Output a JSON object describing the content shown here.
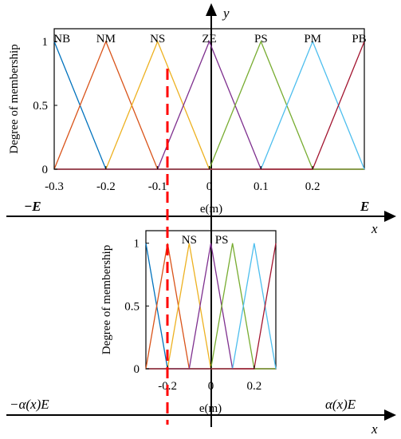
{
  "axis_labels": {
    "y_vertical": "y",
    "x_horizontal_1": "x",
    "x_horizontal_2": "x",
    "left_1": "−E",
    "right_1": "E",
    "left_2": "−α(x)E",
    "right_2": "α(x)E"
  },
  "colors": {
    "NB": "#0072BD",
    "NM": "#D95319",
    "NS": "#EDB120",
    "ZE": "#7E2F8E",
    "PS": "#77AC30",
    "PM": "#4DBEEE",
    "PB": "#A2142F",
    "dashed": "#FF0000"
  },
  "chart_data": [
    {
      "type": "line",
      "ylabel": "Degree of membership",
      "xlabel": "e(m)",
      "xlim": [
        -0.3,
        0.3
      ],
      "ylim": [
        0,
        1.1
      ],
      "xticks": [
        -0.3,
        -0.2,
        -0.1,
        0,
        0.1,
        0.2
      ],
      "xtick_labels": [
        "-0.3",
        "-0.2",
        "-0.1",
        "0",
        "0.1",
        "0.2"
      ],
      "yticks": [
        0,
        0.5,
        1
      ],
      "ytick_labels": [
        "0",
        "0.5",
        "1"
      ],
      "set_labels": [
        "NB",
        "NM",
        "NS",
        "ZE",
        "PS",
        "PM",
        "PB"
      ],
      "series": [
        {
          "name": "NB",
          "x": [
            -0.3,
            -0.2,
            0.3
          ],
          "y": [
            1,
            0,
            0
          ]
        },
        {
          "name": "NM",
          "x": [
            -0.3,
            -0.2,
            -0.1,
            0.3
          ],
          "y": [
            0,
            1,
            0,
            0
          ]
        },
        {
          "name": "NS",
          "x": [
            -0.3,
            -0.2,
            -0.1,
            0,
            0.3
          ],
          "y": [
            0,
            0,
            1,
            0,
            0
          ]
        },
        {
          "name": "ZE",
          "x": [
            -0.3,
            -0.1,
            0,
            0.1,
            0.3
          ],
          "y": [
            0,
            0,
            1,
            0,
            0
          ]
        },
        {
          "name": "PS",
          "x": [
            -0.3,
            0,
            0.1,
            0.2,
            0.3
          ],
          "y": [
            0,
            0,
            1,
            0,
            0
          ]
        },
        {
          "name": "PM",
          "x": [
            -0.3,
            0.1,
            0.2,
            0.3
          ],
          "y": [
            0,
            0,
            1,
            0
          ]
        },
        {
          "name": "PB",
          "x": [
            -0.3,
            0.2,
            0.3
          ],
          "y": [
            0,
            0,
            1
          ]
        }
      ]
    },
    {
      "type": "line",
      "ylabel": "Degree of membership",
      "xlabel": "e(m)",
      "xlim": [
        -0.3,
        0.3
      ],
      "ylim": [
        0,
        1.1
      ],
      "xticks": [
        -0.2,
        0,
        0.2
      ],
      "xtick_labels": [
        "-0.2",
        "0",
        "0.2"
      ],
      "yticks": [
        0,
        0.5,
        1
      ],
      "ytick_labels": [
        "0",
        "0.5",
        "1"
      ],
      "set_labels": [
        "NS",
        "PS"
      ],
      "series": [
        {
          "name": "NB",
          "x": [
            -0.3,
            -0.2,
            0.3
          ],
          "y": [
            1,
            0,
            0
          ]
        },
        {
          "name": "NM",
          "x": [
            -0.3,
            -0.2,
            -0.1,
            0.3
          ],
          "y": [
            0,
            1,
            0,
            0
          ]
        },
        {
          "name": "NS",
          "x": [
            -0.3,
            -0.2,
            -0.1,
            0,
            0.3
          ],
          "y": [
            0,
            0,
            1,
            0,
            0
          ]
        },
        {
          "name": "ZE",
          "x": [
            -0.3,
            -0.1,
            0,
            0.1,
            0.3
          ],
          "y": [
            0,
            0,
            1,
            0,
            0
          ]
        },
        {
          "name": "PS",
          "x": [
            -0.3,
            0,
            0.1,
            0.2,
            0.3
          ],
          "y": [
            0,
            0,
            1,
            0,
            0
          ]
        },
        {
          "name": "PM",
          "x": [
            -0.3,
            0.1,
            0.2,
            0.3
          ],
          "y": [
            0,
            0,
            1,
            0
          ]
        },
        {
          "name": "PB",
          "x": [
            -0.3,
            0.2,
            0.3
          ],
          "y": [
            0,
            0,
            1
          ]
        }
      ]
    }
  ]
}
